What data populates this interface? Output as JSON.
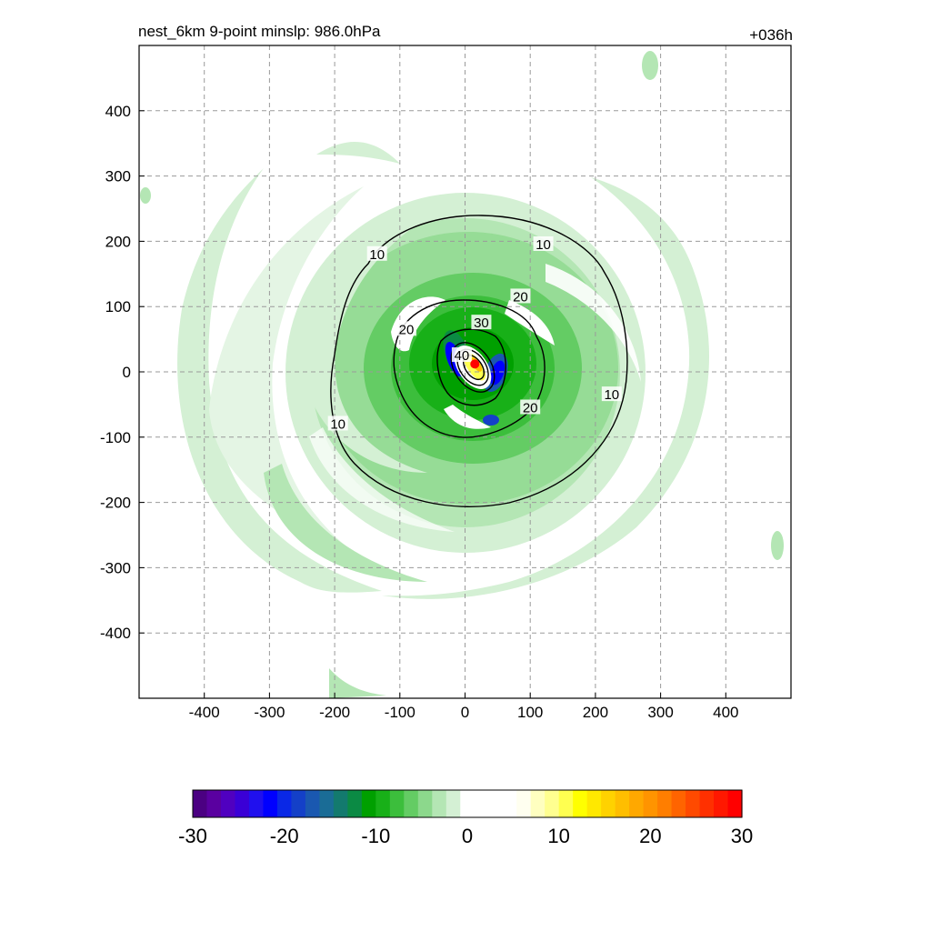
{
  "chart_data": {
    "type": "heatmap",
    "title": "nest_6km  9-point minslp: 986.0hPa",
    "time_label": "+036h",
    "xlim": [
      -500,
      500
    ],
    "ylim": [
      -500,
      500
    ],
    "x_ticks": [
      -400,
      -300,
      -200,
      -100,
      0,
      100,
      200,
      300,
      400
    ],
    "y_ticks": [
      400,
      300,
      200,
      100,
      0,
      -100,
      -200,
      -300,
      -400
    ],
    "grid": true,
    "contour_values": [
      10,
      20,
      30,
      40
    ],
    "contour_labels": [
      {
        "text": "10",
        "x": -135,
        "y": 180
      },
      {
        "text": "10",
        "x": 120,
        "y": 195
      },
      {
        "text": "10",
        "x": 225,
        "y": -35
      },
      {
        "text": "10",
        "x": -195,
        "y": -80
      },
      {
        "text": "20",
        "x": -90,
        "y": 65
      },
      {
        "text": "20",
        "x": 85,
        "y": 115
      },
      {
        "text": "20",
        "x": 100,
        "y": -55
      },
      {
        "text": "30",
        "x": 25,
        "y": 75
      },
      {
        "text": "40",
        "x": -5,
        "y": 25
      }
    ],
    "center_marker": {
      "x": 15,
      "y": 12,
      "color": "#ff0000"
    },
    "colorbar": {
      "ticks": [
        -30,
        -20,
        -10,
        0,
        10,
        20,
        30
      ],
      "range": [
        -30,
        30
      ],
      "colors": [
        "#4b0082",
        "#5a00a0",
        "#5000c0",
        "#3a00d6",
        "#2010ee",
        "#0000ff",
        "#0a28e6",
        "#1440c8",
        "#1a58b0",
        "#1a6c96",
        "#137a6e",
        "#0b8a44",
        "#00a000",
        "#18b018",
        "#3cbe3c",
        "#64cc64",
        "#8cd88c",
        "#b4e6b4",
        "#d4f0d4",
        "#ffffff",
        "#ffffff",
        "#ffffff",
        "#ffffff",
        "#fffff0",
        "#ffffc0",
        "#ffff90",
        "#ffff50",
        "#ffff00",
        "#ffe800",
        "#ffd200",
        "#ffbe00",
        "#ffa800",
        "#ff9400",
        "#ff7e00",
        "#ff6400",
        "#ff4a00",
        "#ff3000",
        "#ff1800",
        "#ff0000"
      ]
    }
  }
}
